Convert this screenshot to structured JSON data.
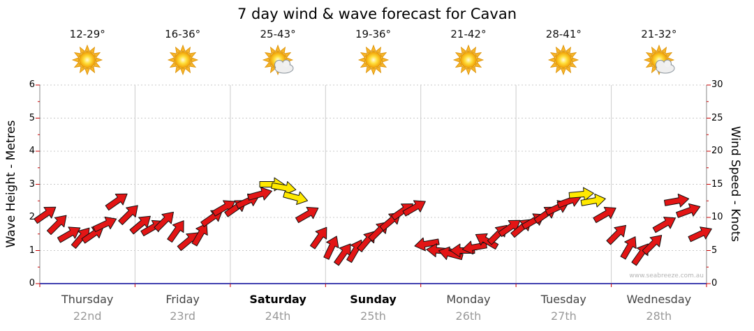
{
  "title": "7 day wind & wave forecast for Cavan",
  "watermark": "www.seabreeze.com.au",
  "axes": {
    "left_title": "Wave Height - Metres",
    "right_title": "Wind Speed - Knots",
    "left_ticks": [
      "0",
      "1",
      "2",
      "3",
      "4",
      "5",
      "6"
    ],
    "right_ticks": [
      "0",
      "5",
      "10",
      "15",
      "20",
      "25",
      "30"
    ]
  },
  "colors": {
    "arrow_red": "#e31515",
    "arrow_yellow": "#ffe900",
    "arrow_outline": "#111111",
    "tick": "#cc0000",
    "baseline": "#4040b0",
    "day_grid": "#cccccc",
    "metre_grid": "#c8c8c8",
    "axis_line": "#888888",
    "day_label": "#444444",
    "weekend_label": "#000000",
    "date_label": "#999999"
  },
  "chart_data": {
    "type": "scatter",
    "description": "Wind speed/direction arrows every 3 hours across 7 days; red = lighter winds, yellow = stronger winds",
    "title": "7 day wind & wave forecast for Cavan",
    "ylabel_left": "Wave Height - Metres",
    "ylabel_right": "Wind Speed - Knots",
    "y_left_range": [
      0,
      6
    ],
    "y_right_range": [
      0,
      30
    ],
    "unit": "knots",
    "grid": "vertical day separators, dotted horizontal metre lines",
    "sample_hours": [
      0,
      3,
      6,
      9,
      12,
      15,
      18,
      21
    ],
    "days": [
      {
        "name": "Thursday",
        "date": "22nd",
        "temp": "12-29°",
        "icon": "sun",
        "weekend": false,
        "wind_knots": [
          10.5,
          9,
          7.5,
          7,
          7.5,
          9,
          12.5,
          10.5
        ],
        "arrow_rot_deg": [
          -35,
          -45,
          -30,
          -50,
          -35,
          -25,
          -35,
          -45
        ],
        "arrow_colors": [
          "red",
          "red",
          "red",
          "red",
          "red",
          "red",
          "red",
          "red"
        ]
      },
      {
        "name": "Friday",
        "date": "23rd",
        "temp": "16-36°",
        "icon": "sun",
        "weekend": false,
        "wind_knots": [
          9,
          8.5,
          9.5,
          8,
          6.5,
          7.5,
          10,
          11.5
        ],
        "arrow_rot_deg": [
          -40,
          -30,
          -45,
          -55,
          -40,
          -60,
          -35,
          -30
        ],
        "arrow_colors": [
          "red",
          "red",
          "red",
          "red",
          "red",
          "red",
          "red",
          "red"
        ]
      },
      {
        "name": "Saturday",
        "date": "24th",
        "temp": "25-43°",
        "icon": "sun-cloud",
        "weekend": true,
        "wind_knots": [
          11.5,
          12.5,
          13.5,
          15,
          14.5,
          13,
          10.5,
          7
        ],
        "arrow_rot_deg": [
          -35,
          -25,
          -15,
          0,
          10,
          15,
          -30,
          -55
        ],
        "arrow_colors": [
          "red",
          "red",
          "red",
          "yellow",
          "yellow",
          "yellow",
          "red",
          "red"
        ]
      },
      {
        "name": "Sunday",
        "date": "25th",
        "temp": "19-36°",
        "icon": "sun",
        "weekend": true,
        "wind_knots": [
          5.5,
          4.5,
          5,
          6.5,
          8,
          9.5,
          11,
          11.5
        ],
        "arrow_rot_deg": [
          -65,
          -55,
          -60,
          -50,
          -45,
          -40,
          -35,
          -30
        ],
        "arrow_colors": [
          "red",
          "red",
          "red",
          "red",
          "red",
          "red",
          "red",
          "red"
        ]
      },
      {
        "name": "Monday",
        "date": "26th",
        "temp": "21-42°",
        "icon": "sun",
        "weekend": false,
        "wind_knots": [
          6,
          5,
          4.5,
          5,
          5.5,
          6.5,
          7.5,
          8.5
        ],
        "arrow_rot_deg": [
          170,
          185,
          195,
          180,
          170,
          -150,
          -45,
          -35
        ],
        "arrow_colors": [
          "red",
          "red",
          "red",
          "red",
          "red",
          "red",
          "red",
          "red"
        ]
      },
      {
        "name": "Tuesday",
        "date": "27th",
        "temp": "28-41°",
        "icon": "sun",
        "weekend": false,
        "wind_knots": [
          8.5,
          9.5,
          10.5,
          11.5,
          12.5,
          13.5,
          12.5,
          10.5
        ],
        "arrow_rot_deg": [
          -40,
          -30,
          -35,
          -25,
          -20,
          -5,
          -10,
          -30
        ],
        "arrow_colors": [
          "red",
          "red",
          "red",
          "red",
          "red",
          "yellow",
          "yellow",
          "red"
        ]
      },
      {
        "name": "Wednesday",
        "date": "28th",
        "temp": "21-32°",
        "icon": "sun-cloud",
        "weekend": false,
        "wind_knots": [
          7.5,
          5.5,
          4.5,
          6,
          9,
          12.5,
          11,
          7.5
        ],
        "arrow_rot_deg": [
          -45,
          -60,
          -55,
          -45,
          -30,
          -10,
          -20,
          -25
        ],
        "arrow_colors": [
          "red",
          "red",
          "red",
          "red",
          "red",
          "red",
          "red",
          "red"
        ]
      }
    ]
  }
}
